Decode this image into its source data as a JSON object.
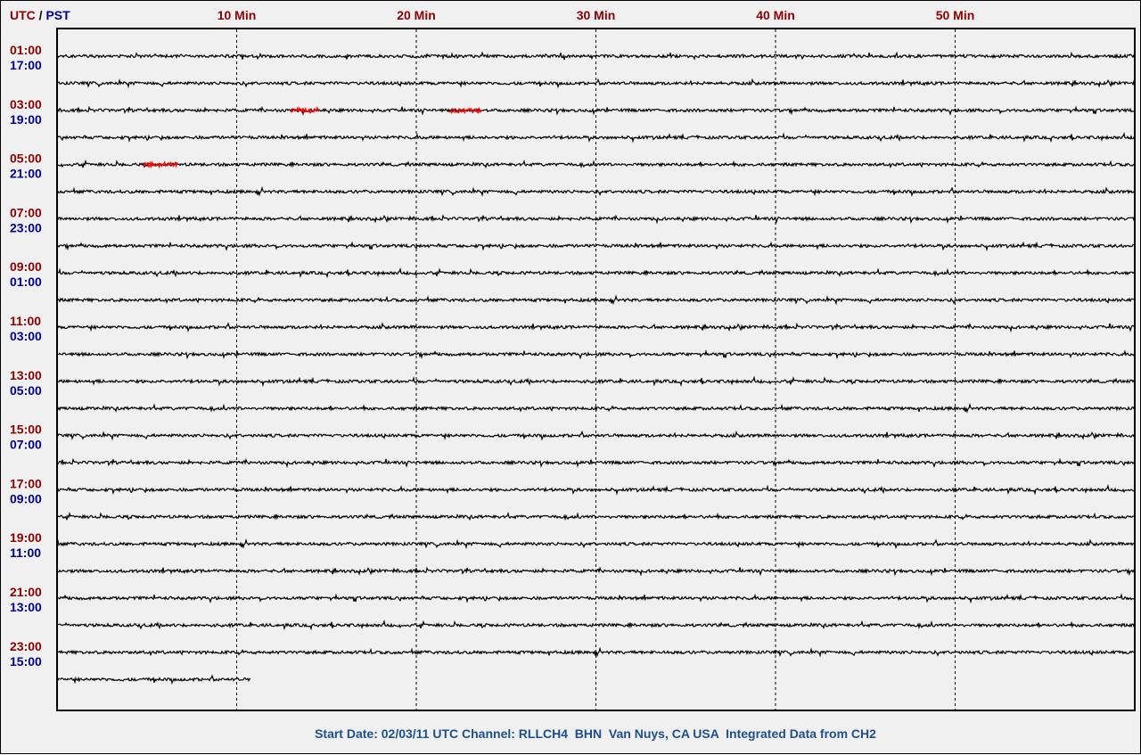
{
  "header": {
    "utc": "UTC",
    "sep": " / ",
    "pst": "PST"
  },
  "chart_data": {
    "type": "line",
    "title": "",
    "x_tick_labels": [
      "10 Min",
      "20 Min",
      "30 Min",
      "40 Min",
      "50 Min"
    ],
    "x_ticks_minutes": [
      10,
      20,
      30,
      40,
      50
    ],
    "xlim_minutes": [
      0,
      60
    ],
    "trace_count": 24,
    "last_trace_end_minute": 10.8,
    "row_labels": [
      {
        "utc": "01:00",
        "pst": "17:00"
      },
      {
        "utc": "03:00",
        "pst": "19:00"
      },
      {
        "utc": "05:00",
        "pst": "21:00"
      },
      {
        "utc": "07:00",
        "pst": "23:00"
      },
      {
        "utc": "09:00",
        "pst": "01:00"
      },
      {
        "utc": "11:00",
        "pst": "03:00"
      },
      {
        "utc": "13:00",
        "pst": "05:00"
      },
      {
        "utc": "15:00",
        "pst": "07:00"
      },
      {
        "utc": "17:00",
        "pst": "09:00"
      },
      {
        "utc": "19:00",
        "pst": "11:00"
      },
      {
        "utc": "21:00",
        "pst": "13:00"
      },
      {
        "utc": "23:00",
        "pst": "15:00"
      }
    ],
    "events": [
      {
        "trace": 2,
        "start_min": 13.0,
        "end_min": 14.6
      },
      {
        "trace": 2,
        "start_min": 21.9,
        "end_min": 23.6
      },
      {
        "trace": 4,
        "start_min": 4.8,
        "end_min": 6.7
      }
    ],
    "trace_color": "#000000",
    "event_color": "#ff0000",
    "utc_color": "#8b0000",
    "pst_color": "#00008b"
  },
  "footer": {
    "text": "Start Date: 02/03/11 UTC Channel: RLLCH4  BHN  Van Nuys, CA USA  Integrated Data from CH2"
  }
}
